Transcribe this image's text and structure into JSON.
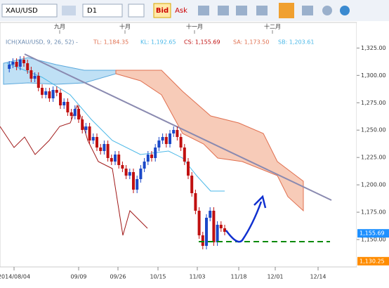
{
  "toolbar": {
    "symbol": "XAU/USD",
    "timeframe": "D1",
    "bid": "Bid",
    "ask": "Ask"
  },
  "chart": {
    "months": [
      "九月",
      "十月",
      "十一月",
      "十二月"
    ],
    "indicator": [
      "ICH(XAU/USD, 9, 26, 52) -",
      "TL: 1,184.35",
      "KL: 1,192.65",
      "CS: 1,155.69",
      "SA: 1,173.50",
      "SB: 1,203.61"
    ],
    "ylim": [
      1125,
      1340
    ],
    "yticks": [
      {
        "value": 1325,
        "label": "1,325.00"
      },
      {
        "value": 1300,
        "label": "1,300.00"
      },
      {
        "value": 1275,
        "label": "1,275.00"
      },
      {
        "value": 1250,
        "label": "1,250.00"
      },
      {
        "value": 1225,
        "label": "1,225.00"
      },
      {
        "value": 1200,
        "label": "1,200.00"
      },
      {
        "value": 1175,
        "label": "1,175.00"
      },
      {
        "value": 1150,
        "label": "1,150.00"
      }
    ],
    "price_labels": [
      {
        "value": 1155.69,
        "label": "1,155.69",
        "color": "#1e90ff"
      },
      {
        "value": 1130.25,
        "label": "1,130.25",
        "color": "#ff8c00"
      }
    ],
    "dates": [
      "2014/08/04",
      "09/09",
      "09/26",
      "10/15",
      "11/03",
      "11/18",
      "12/01",
      "12/14"
    ]
  }
}
